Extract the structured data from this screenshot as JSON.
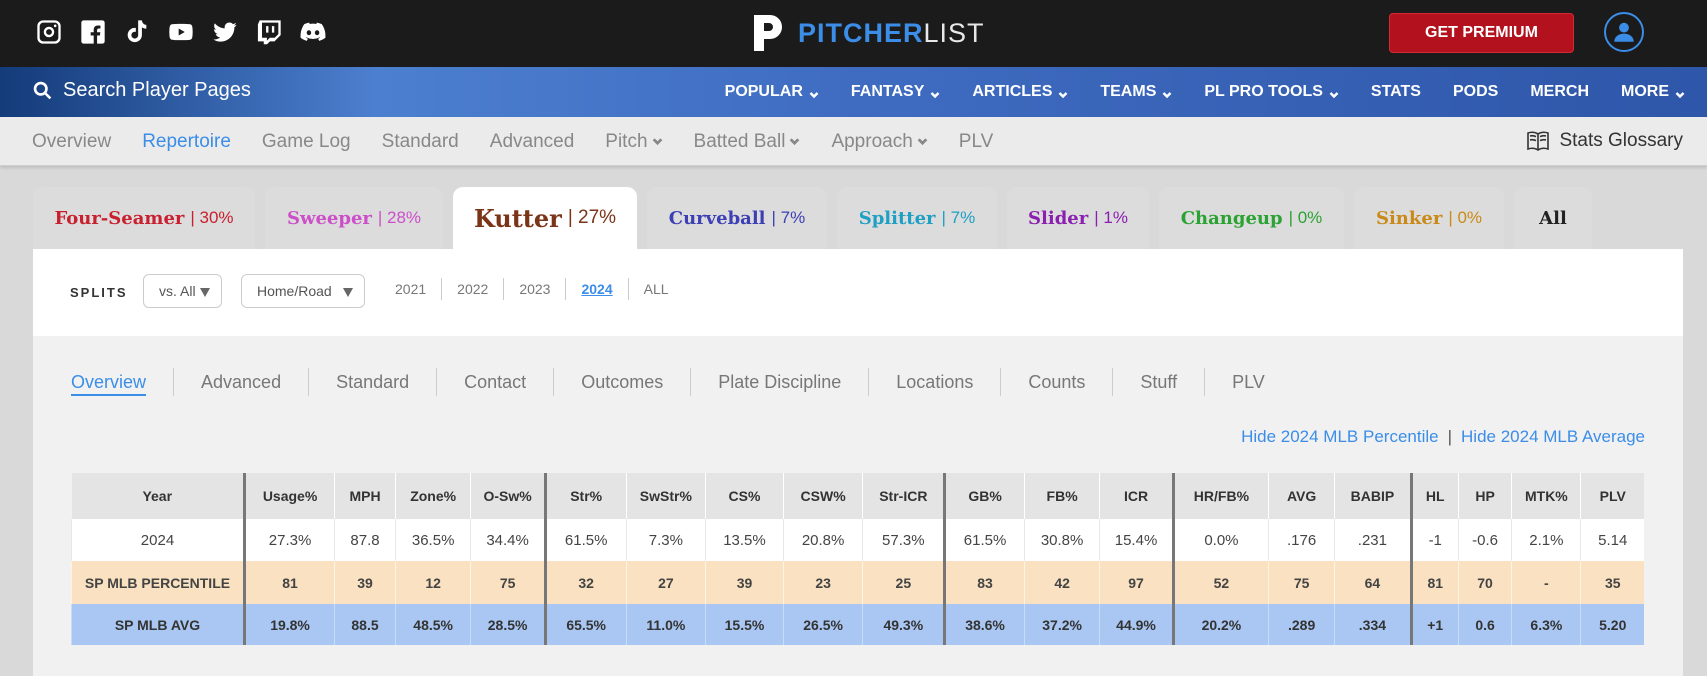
{
  "brand": {
    "word1": "PITCHER",
    "word2": "LIST",
    "premium": "GET PREMIUM"
  },
  "search": {
    "label": "Search Player Pages"
  },
  "nav": [
    {
      "label": "POPULAR",
      "dropdown": true
    },
    {
      "label": "FANTASY",
      "dropdown": true
    },
    {
      "label": "ARTICLES",
      "dropdown": true
    },
    {
      "label": "TEAMS",
      "dropdown": true
    },
    {
      "label": "PL PRO TOOLS",
      "dropdown": true
    },
    {
      "label": "STATS",
      "dropdown": false
    },
    {
      "label": "PODS",
      "dropdown": false
    },
    {
      "label": "MERCH",
      "dropdown": false
    },
    {
      "label": "MORE",
      "dropdown": true
    }
  ],
  "subnav": {
    "items": [
      {
        "label": "Overview",
        "active": false,
        "dropdown": false
      },
      {
        "label": "Repertoire",
        "active": true,
        "dropdown": false
      },
      {
        "label": "Game Log",
        "active": false,
        "dropdown": false
      },
      {
        "label": "Standard",
        "active": false,
        "dropdown": false
      },
      {
        "label": "Advanced",
        "active": false,
        "dropdown": false
      },
      {
        "label": "Pitch",
        "active": false,
        "dropdown": true
      },
      {
        "label": "Batted Ball",
        "active": false,
        "dropdown": true
      },
      {
        "label": "Approach",
        "active": false,
        "dropdown": true
      },
      {
        "label": "PLV",
        "active": false,
        "dropdown": false
      }
    ],
    "glossary": "Stats Glossary"
  },
  "pitch_tabs": [
    {
      "name": "Four-Seamer",
      "pct": "| 30%",
      "color": "#c8202f",
      "active": false,
      "width": 222
    },
    {
      "name": "Sweeper",
      "pct": "| 28%",
      "color": "#cc4fc9",
      "active": false,
      "width": 178
    },
    {
      "name": "Kutter",
      "pct": "| 27%",
      "color": "#7a3418",
      "active": true,
      "width": 184
    },
    {
      "name": "Curveball",
      "pct": "| 7%",
      "color": "#3d3fb4",
      "active": false,
      "width": 180
    },
    {
      "name": "Splitter",
      "pct": "| 7%",
      "color": "#1e9fc4",
      "active": false,
      "width": 160
    },
    {
      "name": "Slider",
      "pct": "| 1%",
      "color": "#8a1fb0",
      "active": false,
      "width": 142
    },
    {
      "name": "Changeup",
      "pct": "| 0%",
      "color": "#2ba332",
      "active": false,
      "width": 185
    },
    {
      "name": "Sinker",
      "pct": "| 0%",
      "color": "#c98a18",
      "active": false,
      "width": 150
    },
    {
      "name": "All",
      "pct": "",
      "color": "#222222",
      "active": false,
      "width": 78
    }
  ],
  "splits": {
    "label": "SPLITS",
    "vs": "vs. All",
    "homeroad": "Home/Road",
    "years": [
      {
        "label": "2021",
        "active": false
      },
      {
        "label": "2022",
        "active": false
      },
      {
        "label": "2023",
        "active": false
      },
      {
        "label": "2024",
        "active": true
      },
      {
        "label": "ALL",
        "active": false
      }
    ]
  },
  "stat_tabs": [
    {
      "label": "Overview",
      "active": true
    },
    {
      "label": "Advanced",
      "active": false
    },
    {
      "label": "Standard",
      "active": false
    },
    {
      "label": "Contact",
      "active": false
    },
    {
      "label": "Outcomes",
      "active": false
    },
    {
      "label": "Plate Discipline",
      "active": false
    },
    {
      "label": "Locations",
      "active": false
    },
    {
      "label": "Counts",
      "active": false
    },
    {
      "label": "Stuff",
      "active": false
    },
    {
      "label": "PLV",
      "active": false
    }
  ],
  "hide_links": {
    "percentile": "Hide 2024 MLB Percentile",
    "sep": "|",
    "average": "Hide 2024 MLB Average"
  },
  "table": {
    "headers": [
      "Year",
      "Usage%",
      "MPH",
      "Zone%",
      "O-Sw%",
      "Str%",
      "SwStr%",
      "CS%",
      "CSW%",
      "Str-ICR",
      "GB%",
      "FB%",
      "ICR",
      "HR/FB%",
      "AVG",
      "BABIP",
      "HL",
      "HP",
      "MTK%",
      "PLV"
    ],
    "rows": [
      {
        "kind": "r-year",
        "cells": [
          "2024",
          "27.3%",
          "87.8",
          "36.5%",
          "34.4%",
          "61.5%",
          "7.3%",
          "13.5%",
          "20.8%",
          "57.3%",
          "61.5%",
          "30.8%",
          "15.4%",
          "0.0%",
          ".176",
          ".231",
          "-1",
          "-0.6",
          "2.1%",
          "5.14"
        ]
      },
      {
        "kind": "r-pct",
        "cells": [
          "SP MLB PERCENTILE",
          "81",
          "39",
          "12",
          "75",
          "32",
          "27",
          "39",
          "23",
          "25",
          "83",
          "42",
          "97",
          "52",
          "75",
          "64",
          "81",
          "70",
          "-",
          "35"
        ]
      },
      {
        "kind": "r-avg",
        "cells": [
          "SP MLB AVG",
          "19.8%",
          "88.5",
          "48.5%",
          "28.5%",
          "65.5%",
          "11.0%",
          "15.5%",
          "26.5%",
          "49.3%",
          "38.6%",
          "37.2%",
          "44.9%",
          "20.2%",
          ".289",
          ".334",
          "+1",
          "0.6",
          "6.3%",
          "5.20"
        ]
      }
    ]
  }
}
